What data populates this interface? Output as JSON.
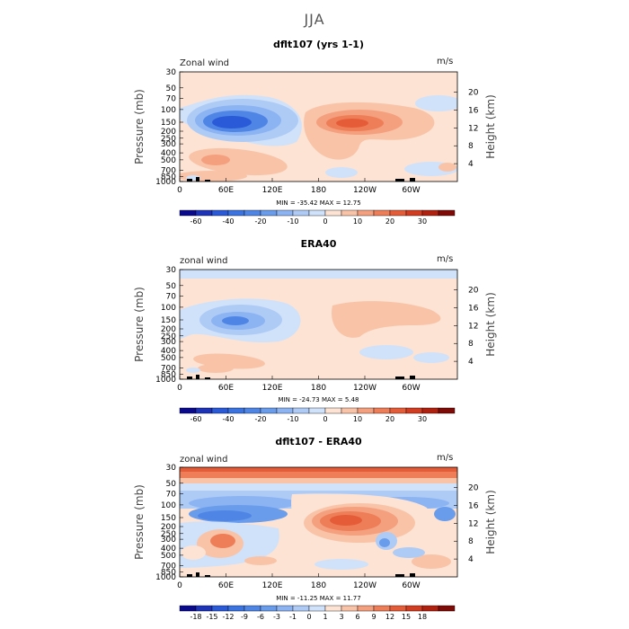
{
  "season_title": "JJA",
  "panels": [
    {
      "title": "dflt107 (yrs 1-1)",
      "left_label": "Zonal wind",
      "right_label": "m/s",
      "minmax": "MIN = -35.42   MAX =  12.75"
    },
    {
      "title": "ERA40",
      "left_label": "zonal wind",
      "right_label": "m/s",
      "minmax": "MIN = -24.73   MAX =   5.48"
    },
    {
      "title": "dflt107 - ERA40",
      "left_label": "zonal wind",
      "right_label": "m/s",
      "minmax": "MIN = -11.25   MAX =  11.77"
    }
  ],
  "axes": {
    "ylabel": "Pressure (mb)",
    "y2label": "Height (km)"
  },
  "chart_data": [
    {
      "type": "contour",
      "title": "dflt107 (yrs 1-1)",
      "variable": "Zonal wind",
      "units": "m/s",
      "x_tick_labels": [
        "0",
        "60E",
        "120E",
        "180",
        "120W",
        "60W"
      ],
      "x_ticks_deg": [
        0,
        60,
        120,
        180,
        240,
        300
      ],
      "xlim_deg": [
        0,
        360
      ],
      "y_tick_labels": [
        "30",
        "50",
        "70",
        "100",
        "150",
        "200",
        "250",
        "300",
        "400",
        "500",
        "700",
        "850",
        "1000"
      ],
      "y_ticks_mb": [
        30,
        50,
        70,
        100,
        150,
        200,
        250,
        300,
        400,
        500,
        700,
        850,
        1000
      ],
      "ylim_mb": [
        1000,
        30
      ],
      "y2_tick_labels": [
        "4",
        "8",
        "12",
        "16",
        "20"
      ],
      "y2_ticks_km": [
        4,
        8,
        12,
        16,
        20
      ],
      "min": -35.42,
      "max": 12.75,
      "colorbar": {
        "labels": [
          "-60",
          "-40",
          "-20",
          "-10",
          "0",
          "10",
          "20",
          "30"
        ],
        "levels": [
          -70,
          -60,
          -50,
          -40,
          -30,
          -20,
          -15,
          -10,
          -5,
          0,
          5,
          10,
          15,
          20,
          25,
          30,
          35
        ],
        "colors": [
          "#0a0a8c",
          "#1d33b8",
          "#2a5ad8",
          "#3b73e0",
          "#4f86e6",
          "#6a9cec",
          "#8cb4f2",
          "#aecbf6",
          "#d0e2fa",
          "#fde3d3",
          "#f9c3a8",
          "#f4a07e",
          "#ee7e58",
          "#e55d38",
          "#d23c20",
          "#b0220f",
          "#7e0b05"
        ]
      }
    },
    {
      "type": "contour",
      "title": "ERA40",
      "variable": "zonal wind",
      "units": "m/s",
      "x_tick_labels": [
        "0",
        "60E",
        "120E",
        "180",
        "120W",
        "60W"
      ],
      "x_ticks_deg": [
        0,
        60,
        120,
        180,
        240,
        300
      ],
      "xlim_deg": [
        0,
        360
      ],
      "y_tick_labels": [
        "30",
        "50",
        "70",
        "100",
        "150",
        "200",
        "250",
        "300",
        "400",
        "500",
        "700",
        "850",
        "1000"
      ],
      "y_ticks_mb": [
        30,
        50,
        70,
        100,
        150,
        200,
        250,
        300,
        400,
        500,
        700,
        850,
        1000
      ],
      "ylim_mb": [
        1000,
        30
      ],
      "y2_tick_labels": [
        "4",
        "8",
        "12",
        "16",
        "20"
      ],
      "y2_ticks_km": [
        4,
        8,
        12,
        16,
        20
      ],
      "min": -24.73,
      "max": 5.48,
      "colorbar": {
        "labels": [
          "-60",
          "-40",
          "-20",
          "-10",
          "0",
          "10",
          "20",
          "30"
        ],
        "levels": [
          -70,
          -60,
          -50,
          -40,
          -30,
          -20,
          -15,
          -10,
          -5,
          0,
          5,
          10,
          15,
          20,
          25,
          30,
          35
        ],
        "colors": [
          "#0a0a8c",
          "#1d33b8",
          "#2a5ad8",
          "#3b73e0",
          "#4f86e6",
          "#6a9cec",
          "#8cb4f2",
          "#aecbf6",
          "#d0e2fa",
          "#fde3d3",
          "#f9c3a8",
          "#f4a07e",
          "#ee7e58",
          "#e55d38",
          "#d23c20",
          "#b0220f",
          "#7e0b05"
        ]
      }
    },
    {
      "type": "contour",
      "title": "dflt107 - ERA40",
      "variable": "zonal wind",
      "units": "m/s",
      "x_tick_labels": [
        "0",
        "60E",
        "120E",
        "180",
        "120W",
        "60W"
      ],
      "x_ticks_deg": [
        0,
        60,
        120,
        180,
        240,
        300
      ],
      "xlim_deg": [
        0,
        360
      ],
      "y_tick_labels": [
        "30",
        "50",
        "70",
        "100",
        "150",
        "200",
        "250",
        "300",
        "400",
        "500",
        "700",
        "850",
        "1000"
      ],
      "y_ticks_mb": [
        30,
        50,
        70,
        100,
        150,
        200,
        250,
        300,
        400,
        500,
        700,
        850,
        1000
      ],
      "ylim_mb": [
        1000,
        30
      ],
      "y2_tick_labels": [
        "4",
        "8",
        "12",
        "16",
        "20"
      ],
      "y2_ticks_km": [
        4,
        8,
        12,
        16,
        20
      ],
      "min": -11.25,
      "max": 11.77,
      "colorbar": {
        "labels": [
          "-18",
          "-15",
          "-12",
          "-9",
          "-6",
          "-3",
          "-1",
          "0",
          "1",
          "3",
          "6",
          "9",
          "12",
          "15",
          "18"
        ],
        "levels": [
          -21,
          -18,
          -15,
          -12,
          -9,
          -6,
          -3,
          -1,
          0,
          1,
          3,
          6,
          9,
          12,
          15,
          18,
          21
        ],
        "colors": [
          "#0a0a8c",
          "#1d33b8",
          "#2a5ad8",
          "#3b73e0",
          "#4f86e6",
          "#6a9cec",
          "#8cb4f2",
          "#aecbf6",
          "#d0e2fa",
          "#fde3d3",
          "#f9c3a8",
          "#f4a07e",
          "#ee7e58",
          "#e55d38",
          "#d23c20",
          "#b0220f",
          "#7e0b05"
        ]
      }
    }
  ]
}
